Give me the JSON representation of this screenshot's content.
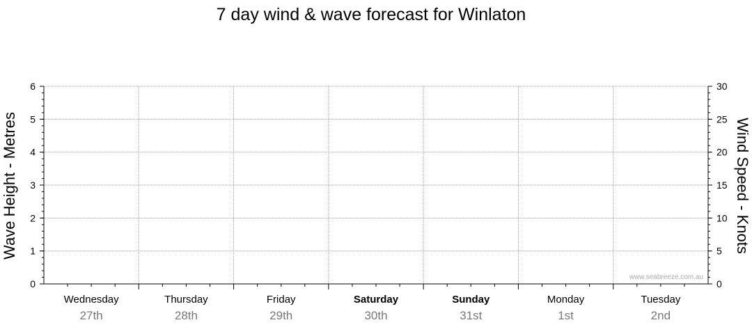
{
  "chart_data": {
    "type": "line",
    "title": "7 day wind & wave forecast for Winlaton",
    "ylabel_left": "Wave Height - Metres",
    "ylabel_right": "Wind Speed - Knots",
    "ylim_left": [
      0,
      6
    ],
    "ylim_right": [
      0,
      30
    ],
    "yticks_left": [
      "0",
      "1",
      "2",
      "3",
      "4",
      "5",
      "6"
    ],
    "yticks_right": [
      "0",
      "5",
      "10",
      "15",
      "20",
      "25",
      "30"
    ],
    "grid": true,
    "days": [
      {
        "day": "Wednesday",
        "date": "27th",
        "bold": false
      },
      {
        "day": "Thursday",
        "date": "28th",
        "bold": false
      },
      {
        "day": "Friday",
        "date": "29th",
        "bold": false
      },
      {
        "day": "Saturday",
        "date": "30th",
        "bold": true
      },
      {
        "day": "Sunday",
        "date": "31st",
        "bold": true
      },
      {
        "day": "Monday",
        "date": "1st",
        "bold": false
      },
      {
        "day": "Tuesday",
        "date": "2nd",
        "bold": false
      }
    ],
    "series": [],
    "watermark": "www.seabreeze.com.au"
  }
}
